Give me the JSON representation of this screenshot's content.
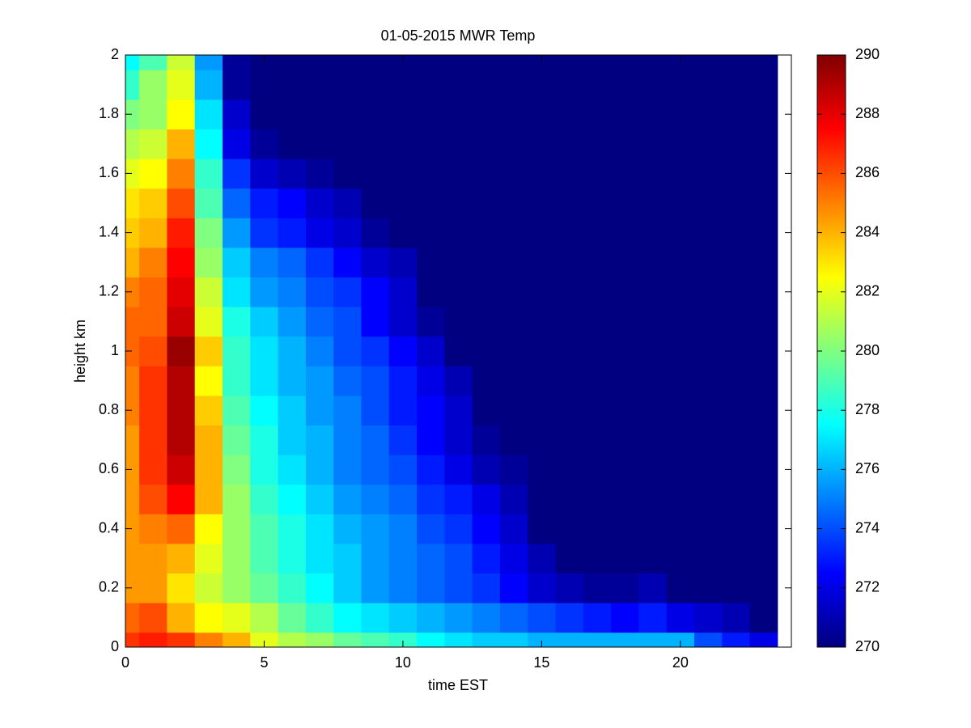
{
  "chart_data": {
    "type": "heatmap",
    "title": "01-05-2015 MWR Temp",
    "xlabel": "time EST",
    "ylabel": "height km",
    "colormap": "jet",
    "x_edges": [
      0,
      0.5,
      1.5,
      2.5,
      3.5,
      4.5,
      5.5,
      6.5,
      7.5,
      8.5,
      9.5,
      10.5,
      11.5,
      12.5,
      13.5,
      14.5,
      15.5,
      16.5,
      17.5,
      18.5,
      19.5,
      20.5,
      21.5,
      22.5,
      23.5
    ],
    "y_edges": [
      0,
      0.05,
      0.15,
      0.25,
      0.35,
      0.45,
      0.55,
      0.65,
      0.75,
      0.85,
      0.95,
      1.05,
      1.15,
      1.25,
      1.35,
      1.45,
      1.55,
      1.65,
      1.75,
      1.85,
      1.95,
      2
    ],
    "z": [
      [
        286.5,
        285.5,
        284.5,
        284.5,
        284.5,
        284.5,
        284.5,
        284.5,
        285,
        285,
        285.5,
        285.5,
        285,
        284,
        283.5,
        283,
        282,
        281,
        280,
        278.5,
        277.5
      ],
      [
        287,
        286,
        284.5,
        284.5,
        285,
        286,
        286.5,
        286.5,
        286.5,
        286.5,
        286,
        285.5,
        285.5,
        285,
        284,
        283.5,
        282.5,
        281.5,
        280.5,
        280.5,
        279
      ],
      [
        286.5,
        284,
        283,
        284,
        285.5,
        287.5,
        288.5,
        289,
        289,
        289,
        289.5,
        288.5,
        288,
        287.5,
        287,
        286,
        285,
        284,
        282.5,
        282,
        281.5
      ],
      [
        285,
        282.5,
        281.5,
        282,
        282.5,
        284,
        284,
        284,
        283.5,
        282.5,
        283.5,
        282,
        281.5,
        280.5,
        280,
        279,
        278.5,
        277.5,
        277,
        276,
        275.5
      ],
      [
        284,
        282,
        280.5,
        280.5,
        280.5,
        280.5,
        280,
        279.5,
        279,
        278.5,
        278.5,
        278,
        277,
        276.5,
        275.5,
        274.5,
        273.5,
        272,
        271.5,
        270.5,
        270.5
      ],
      [
        282,
        281,
        279.5,
        279,
        279,
        278.5,
        278,
        278,
        277.5,
        277,
        277,
        276.5,
        275.5,
        275,
        273.5,
        273,
        271.5,
        270.5,
        270,
        270,
        270
      ],
      [
        281,
        279.5,
        278.5,
        278,
        278,
        277.5,
        277,
        276.5,
        276.5,
        276,
        276,
        275.5,
        275,
        274.5,
        273,
        272.5,
        271,
        270,
        270,
        270,
        270
      ],
      [
        280.5,
        278.5,
        277.5,
        277,
        277,
        276.5,
        276,
        276,
        275.5,
        275.5,
        275,
        274.5,
        274,
        273.5,
        272,
        271.5,
        270.5,
        270,
        270,
        270,
        270
      ],
      [
        279.5,
        277.5,
        276.5,
        276.5,
        276,
        275.5,
        275,
        275,
        275,
        274.5,
        274,
        274,
        273.5,
        272.5,
        271.5,
        271,
        270,
        270,
        270,
        270,
        270
      ],
      [
        279,
        277,
        275.5,
        275.5,
        275.5,
        275,
        274.5,
        274.5,
        274,
        274,
        273.5,
        272.5,
        272.5,
        271.5,
        270.5,
        270,
        270,
        270,
        270,
        270,
        270
      ],
      [
        278.5,
        276.5,
        275,
        275,
        275,
        274.5,
        274,
        273.5,
        273,
        273,
        272.5,
        271.5,
        271.5,
        271,
        270,
        270,
        270,
        270,
        270,
        270,
        270
      ],
      [
        277.5,
        276,
        274.5,
        274.5,
        274,
        273.5,
        273,
        272.5,
        272.5,
        272,
        271.5,
        270.5,
        270,
        270,
        270,
        270,
        270,
        270,
        270,
        270,
        270
      ],
      [
        277,
        275.5,
        274,
        274,
        273.5,
        273,
        272,
        271.5,
        271.5,
        271,
        270,
        270,
        270,
        270,
        270,
        270,
        270,
        270,
        270,
        270,
        270
      ],
      [
        276.5,
        275,
        273.5,
        273,
        272.5,
        272,
        271,
        270.5,
        270,
        270,
        270,
        270,
        270,
        270,
        270,
        270,
        270,
        270,
        270,
        270,
        270
      ],
      [
        276.5,
        274.5,
        272.5,
        272,
        271.5,
        271,
        270.5,
        270,
        270,
        270,
        270,
        270,
        270,
        270,
        270,
        270,
        270,
        270,
        270,
        270,
        270
      ],
      [
        276,
        274,
        271.5,
        271,
        270,
        270,
        270,
        270,
        270,
        270,
        270,
        270,
        270,
        270,
        270,
        270,
        270,
        270,
        270,
        270,
        270
      ],
      [
        276,
        273.5,
        271,
        270,
        270,
        270,
        270,
        270,
        270,
        270,
        270,
        270,
        270,
        270,
        270,
        270,
        270,
        270,
        270,
        270,
        270
      ],
      [
        276,
        273,
        270.5,
        270,
        270,
        270,
        270,
        270,
        270,
        270,
        270,
        270,
        270,
        270,
        270,
        270,
        270,
        270,
        270,
        270,
        270
      ],
      [
        276,
        272.5,
        270.5,
        270,
        270,
        270,
        270,
        270,
        270,
        270,
        270,
        270,
        270,
        270,
        270,
        270,
        270,
        270,
        270,
        270,
        270
      ],
      [
        276,
        273,
        271,
        270,
        270,
        270,
        270,
        270,
        270,
        270,
        270,
        270,
        270,
        270,
        270,
        270,
        270,
        270,
        270,
        270,
        270
      ],
      [
        276,
        272,
        270,
        270,
        270,
        270,
        270,
        270,
        270,
        270,
        270,
        270,
        270,
        270,
        270,
        270,
        270,
        270,
        270,
        270,
        270
      ],
      [
        274,
        271.5,
        270,
        270,
        270,
        270,
        270,
        270,
        270,
        270,
        270,
        270,
        270,
        270,
        270,
        270,
        270,
        270,
        270,
        270,
        270
      ],
      [
        273,
        271,
        270,
        270,
        270,
        270,
        270,
        270,
        270,
        270,
        270,
        270,
        270,
        270,
        270,
        270,
        270,
        270,
        270,
        270,
        270
      ],
      [
        272,
        270,
        270,
        270,
        270,
        270,
        270,
        270,
        270,
        270,
        270,
        270,
        270,
        270,
        270,
        270,
        270,
        270,
        270,
        270,
        270
      ]
    ],
    "xlim": [
      0,
      24
    ],
    "xticks": [
      0,
      5,
      10,
      15,
      20
    ],
    "ylim": [
      0,
      2
    ],
    "yticks": [
      0,
      0.2,
      0.4,
      0.6,
      0.8,
      1,
      1.2,
      1.4,
      1.6,
      1.8,
      2
    ],
    "clim": [
      270,
      290
    ],
    "cticks": [
      270,
      272,
      274,
      276,
      278,
      280,
      282,
      284,
      286,
      288,
      290
    ]
  }
}
